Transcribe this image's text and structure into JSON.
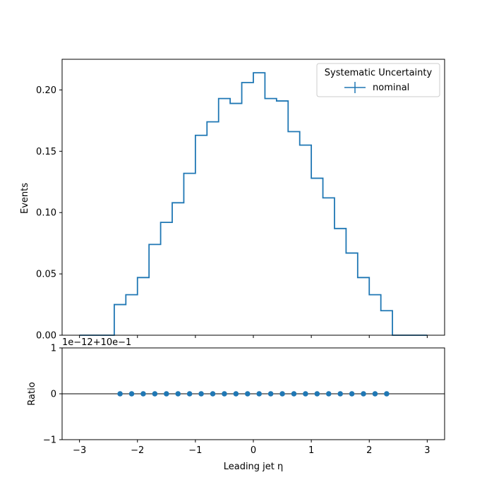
{
  "chart_data": [
    {
      "type": "step",
      "xlabel": "",
      "ylabel": "Events",
      "xlim": [
        -3.3,
        3.3
      ],
      "ylim": [
        0.0,
        0.225
      ],
      "yticks": [
        0.0,
        0.05,
        0.1,
        0.15,
        0.2
      ],
      "ytick_labels": [
        "0.00",
        "0.05",
        "0.10",
        "0.15",
        "0.20"
      ],
      "xticks": [
        -3,
        -2,
        -1,
        0,
        1,
        2,
        3
      ],
      "grid": false,
      "legend": {
        "title": "Systematic Uncertainty",
        "placement": "top-right",
        "entries": [
          "nominal"
        ]
      },
      "color": "#1f77b4",
      "bin_edges": [
        -3.0,
        -2.4,
        -2.2,
        -2.0,
        -1.8,
        -1.6,
        -1.4,
        -1.2,
        -1.0,
        -0.8,
        -0.6,
        -0.4,
        -0.2,
        0.0,
        0.2,
        0.4,
        0.6,
        0.8,
        1.0,
        1.2,
        1.4,
        1.6,
        1.8,
        2.0,
        2.2,
        2.4,
        3.0
      ],
      "series": [
        {
          "name": "nominal",
          "values": [
            0.0,
            0.025,
            0.033,
            0.047,
            0.074,
            0.092,
            0.108,
            0.132,
            0.163,
            0.174,
            0.193,
            0.189,
            0.206,
            0.214,
            0.193,
            0.191,
            0.166,
            0.155,
            0.128,
            0.112,
            0.087,
            0.067,
            0.047,
            0.033,
            0.02,
            0.0
          ]
        }
      ]
    },
    {
      "type": "scatter",
      "xlabel": "Leading jet  η",
      "ylabel": "Ratio",
      "xlim": [
        -3.3,
        3.3
      ],
      "ylim": [
        -1,
        1
      ],
      "offset_text": "1e−12+10e−1",
      "yticks": [
        -1,
        0,
        1
      ],
      "ytick_labels": [
        "−1",
        "0",
        "1"
      ],
      "xticks": [
        -3,
        -2,
        -1,
        0,
        1,
        2,
        3
      ],
      "xtick_labels": [
        "−3",
        "−2",
        "−1",
        "0",
        "1",
        "2",
        "3"
      ],
      "reference_line": 0,
      "color": "#1f77b4",
      "series": [
        {
          "x": [
            -2.3,
            -2.1,
            -1.9,
            -1.7,
            -1.5,
            -1.3,
            -1.1,
            -0.9,
            -0.7,
            -0.5,
            -0.3,
            -0.1,
            0.1,
            0.3,
            0.5,
            0.7,
            0.9,
            1.1,
            1.3,
            1.5,
            1.7,
            1.9,
            2.1,
            2.3
          ],
          "y": [
            0,
            0,
            0,
            0,
            0,
            0,
            0,
            0,
            0,
            0,
            0,
            0,
            0,
            0,
            0,
            0,
            0,
            0,
            0,
            0,
            0,
            0,
            0,
            0
          ]
        }
      ]
    }
  ]
}
